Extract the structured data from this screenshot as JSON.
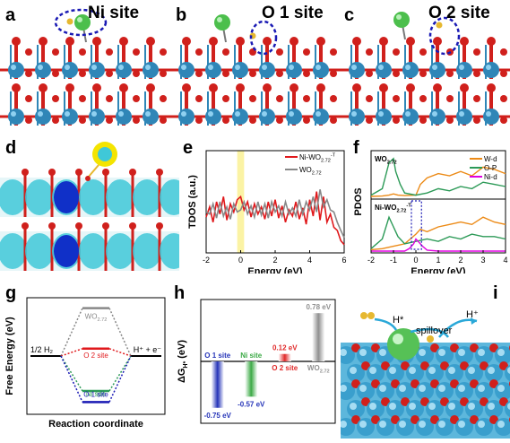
{
  "panels": {
    "a": {
      "label": "a",
      "site": "Ni site"
    },
    "b": {
      "label": "b",
      "site": "O 1 site"
    },
    "c": {
      "label": "c",
      "site": "O 2 site"
    },
    "d": {
      "label": "d"
    },
    "e": {
      "label": "e"
    },
    "f": {
      "label": "f"
    },
    "g": {
      "label": "g"
    },
    "h": {
      "label": "h"
    },
    "i": {
      "label": "i"
    }
  },
  "panel_i": {
    "h_star": "H*",
    "spillover": "spillover",
    "h_plus": "H⁺"
  },
  "colors": {
    "w_atom": "#2f86b7",
    "o_atom": "#d0201c",
    "ni_atom": "#4cbf4c",
    "h_atom": "#e6b830",
    "dash": "#1a1ab4",
    "iso_cyan": "#3fc8d8",
    "iso_blue": "#1030c8",
    "iso_yellow": "#f4e400",
    "ni_wo_red": "#e0191c",
    "wo_gray": "#888888",
    "wd_orange": "#ec8a16",
    "op_green": "#2c9a57",
    "nid_magenta": "#e000e0",
    "bar_blue": "#2433b8",
    "bar_green": "#3caa46",
    "bar_red": "#e02a2a",
    "bar_gray": "#909090"
  },
  "chart_data": [
    {
      "panel": "e",
      "type": "line",
      "xlabel": "Energy (eV)",
      "ylabel": "TDOS (a.u.)",
      "xlim": [
        -2,
        6
      ],
      "xticks": [
        "-2",
        "0",
        "2",
        "4",
        "6"
      ],
      "highlight_band": [
        -0.2,
        0.2
      ],
      "legend_position": "top-right",
      "series": [
        {
          "name": "Ni-WO2.72-T",
          "name_main": "Ni-WO",
          "name_sub": "2.72",
          "name_sup": "-T",
          "x": [
            -2,
            -1.8,
            -1.6,
            -1.4,
            -1.2,
            -1.0,
            -0.8,
            -0.6,
            -0.4,
            -0.2,
            0,
            0.2,
            0.4,
            0.6,
            0.8,
            1.0,
            1.2,
            1.4,
            1.6,
            1.8,
            2.0,
            2.2,
            2.4,
            2.6,
            2.8,
            3.0,
            3.2,
            3.4,
            3.6,
            3.8,
            4.0,
            4.2,
            4.4,
            4.6,
            4.8,
            5.0,
            5.2,
            5.4,
            5.6,
            5.8,
            6.0
          ],
          "y": [
            0.35,
            0.45,
            0.3,
            0.5,
            0.38,
            0.55,
            0.32,
            0.48,
            0.4,
            0.52,
            0.55,
            0.42,
            0.5,
            0.35,
            0.48,
            0.38,
            0.45,
            0.33,
            0.5,
            0.36,
            0.52,
            0.34,
            0.46,
            0.3,
            0.42,
            0.36,
            0.5,
            0.33,
            0.44,
            0.28,
            0.52,
            0.36,
            0.6,
            0.32,
            0.55,
            0.3,
            0.38,
            0.25,
            0.22,
            0.12,
            0.08
          ]
        },
        {
          "name": "WO2.72",
          "name_main": "WO",
          "name_sub": "2.72",
          "name_sup": "",
          "x": [
            -2,
            -1.8,
            -1.6,
            -1.4,
            -1.2,
            -1.0,
            -0.8,
            -0.6,
            -0.4,
            -0.2,
            0,
            0.2,
            0.4,
            0.6,
            0.8,
            1.0,
            1.2,
            1.4,
            1.6,
            1.8,
            2.0,
            2.2,
            2.4,
            2.6,
            2.8,
            3.0,
            3.2,
            3.4,
            3.6,
            3.8,
            4.0,
            4.2,
            4.4,
            4.6,
            4.8,
            5.0,
            5.2,
            5.4,
            5.6,
            5.8,
            6.0
          ],
          "y": [
            0.4,
            0.38,
            0.48,
            0.34,
            0.5,
            0.36,
            0.45,
            0.33,
            0.48,
            0.4,
            0.42,
            0.5,
            0.38,
            0.46,
            0.35,
            0.5,
            0.37,
            0.48,
            0.34,
            0.5,
            0.4,
            0.46,
            0.36,
            0.5,
            0.38,
            0.44,
            0.36,
            0.52,
            0.38,
            0.5,
            0.42,
            0.55,
            0.4,
            0.62,
            0.45,
            0.52,
            0.42,
            0.4,
            0.3,
            0.22,
            0.15
          ]
        }
      ]
    },
    {
      "panel": "f",
      "type": "line",
      "xlabel": "Energy (eV)",
      "ylabel": "PDOS",
      "xlim": [
        -2,
        4
      ],
      "xticks": [
        "-2",
        "-1",
        "0",
        "1",
        "2",
        "3",
        "4"
      ],
      "legend_position": "top-right",
      "legend": [
        "W-d",
        "O-P",
        "Ni-d"
      ],
      "subplots": [
        {
          "name": "WO2.72",
          "name_main": "WO",
          "name_sub": "2.72",
          "name_sup": "",
          "series": [
            {
              "name": "W-d",
              "x": [
                -2,
                -1.5,
                -1.2,
                -1.0,
                -0.8,
                -0.5,
                0,
                0.2,
                0.5,
                1.0,
                1.5,
                2.0,
                2.5,
                3.0,
                3.5,
                4.0
              ],
              "y": [
                0.02,
                0.03,
                0.05,
                0.08,
                0.05,
                0.04,
                0.05,
                0.3,
                0.45,
                0.55,
                0.5,
                0.6,
                0.5,
                0.7,
                0.65,
                0.55
              ]
            },
            {
              "name": "O-P",
              "x": [
                -2,
                -1.5,
                -1.2,
                -1.0,
                -0.9,
                -0.7,
                -0.5,
                0,
                0.5,
                1.0,
                1.5,
                2.0,
                2.5,
                3.0,
                3.5,
                4.0
              ],
              "y": [
                0.05,
                0.2,
                0.8,
                0.9,
                0.6,
                0.3,
                0.1,
                0.05,
                0.1,
                0.2,
                0.15,
                0.25,
                0.2,
                0.35,
                0.3,
                0.25
              ]
            }
          ]
        },
        {
          "name": "Ni-WO2.72-T",
          "name_main": "Ni-WO",
          "name_sub": "2.72",
          "name_sup": "-T",
          "series": [
            {
              "name": "W-d",
              "x": [
                -2,
                -1.5,
                -1.0,
                -0.5,
                0,
                0.2,
                0.5,
                1.0,
                1.5,
                2.0,
                2.5,
                3.0,
                3.5,
                4.0
              ],
              "y": [
                0.03,
                0.05,
                0.1,
                0.15,
                0.35,
                0.45,
                0.4,
                0.5,
                0.55,
                0.6,
                0.55,
                0.7,
                0.6,
                0.55
              ]
            },
            {
              "name": "O-P",
              "x": [
                -2,
                -1.5,
                -1.2,
                -1.0,
                -0.8,
                -0.5,
                0,
                0.5,
                1.0,
                1.5,
                2.0,
                2.5,
                3.0,
                3.5,
                4.0
              ],
              "y": [
                0.05,
                0.25,
                0.7,
                0.5,
                0.3,
                0.15,
                0.2,
                0.25,
                0.2,
                0.3,
                0.25,
                0.35,
                0.3,
                0.3,
                0.25
              ]
            },
            {
              "name": "Ni-d",
              "x": [
                -2,
                -0.5,
                -0.3,
                -0.1,
                0,
                0.1,
                0.3,
                0.5,
                1.0,
                2.0,
                4.0
              ],
              "y": [
                0,
                0,
                0.05,
                0.15,
                0.25,
                0.2,
                0.1,
                0.02,
                0,
                0,
                0
              ]
            }
          ]
        }
      ]
    },
    {
      "panel": "g",
      "type": "line",
      "xlabel": "Reaction coordinate",
      "ylabel": "Free Energy (eV)",
      "start_label": "1/2 H₂",
      "end_label": "H⁺ + e⁻",
      "series": [
        {
          "name": "WO2.72",
          "name_main": "WO",
          "name_sub": "2.72",
          "dG": 0.78
        },
        {
          "name": "O 2 site",
          "name_main": "O 2 site",
          "name_sub": "",
          "dG": 0.12
        },
        {
          "name": "Ni site",
          "name_main": "Ni site",
          "name_sub": "",
          "dG": -0.57
        },
        {
          "name": "O 1 site",
          "name_main": "O 1 site",
          "name_sub": "",
          "dG": -0.75
        }
      ]
    },
    {
      "panel": "h",
      "type": "bar",
      "ylabel": "ΔG",
      "ylabel_sub": "H*",
      "ylabel_unit": "(eV)",
      "ylim": [
        -1.0,
        1.0
      ],
      "categories": [
        "O 1 site",
        "Ni site",
        "O 2 site",
        "WO2.72"
      ],
      "category_sub": [
        "",
        "",
        "",
        "2.72"
      ],
      "category_main": [
        "O 1 site",
        "Ni site",
        "O 2 site",
        "WO"
      ],
      "values": [
        -0.75,
        -0.57,
        0.12,
        0.78
      ],
      "value_labels": [
        "-0.75 eV",
        "-0.57 eV",
        "0.12 eV",
        "0.78 eV"
      ]
    }
  ]
}
